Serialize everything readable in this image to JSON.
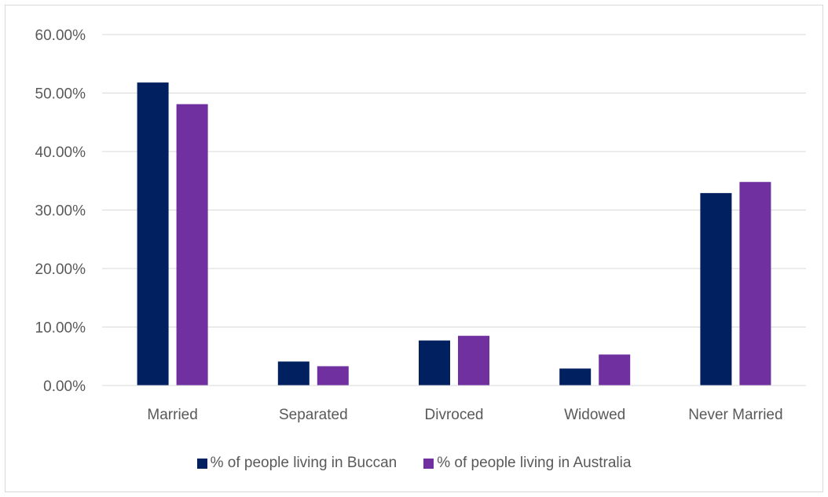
{
  "chart_data": {
    "type": "bar",
    "categories": [
      "Married",
      "Separated",
      "Divroced",
      "Widowed",
      "Never Married"
    ],
    "series": [
      {
        "name": "% of people living in Buccan",
        "color": "#002060",
        "values": [
          51.8,
          4.1,
          7.7,
          2.9,
          32.9
        ]
      },
      {
        "name": "% of people living in Australia",
        "color": "#7030A0",
        "values": [
          48.1,
          3.3,
          8.5,
          5.3,
          34.8
        ]
      }
    ],
    "yticks": [
      "0.00%",
      "10.00%",
      "20.00%",
      "30.00%",
      "40.00%",
      "50.00%",
      "60.00%"
    ],
    "ylim": [
      0,
      60
    ],
    "grid": true,
    "legend_position": "bottom"
  }
}
